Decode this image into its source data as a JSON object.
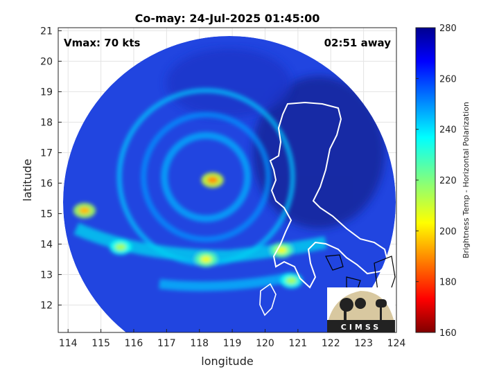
{
  "chart_data": {
    "type": "heatmap",
    "title": "Co-may: 24-Jul-2025 01:45:00",
    "xlabel": "longitude",
    "ylabel": "latitude",
    "xlim": [
      113.7,
      124.0
    ],
    "ylim": [
      11.1,
      21.1
    ],
    "xticks": [
      114,
      115,
      116,
      117,
      118,
      119,
      120,
      121,
      122,
      123,
      124
    ],
    "yticks": [
      12,
      13,
      14,
      15,
      16,
      17,
      18,
      19,
      20,
      21
    ],
    "grid": true,
    "annotations": {
      "vmax": "Vmax: 70 kts",
      "time_away": "02:51 away"
    },
    "storm_center": {
      "lon": 118.2,
      "lat": 16.2
    },
    "features": [
      {
        "lon": 118.4,
        "lat": 16.1,
        "value": 190
      },
      {
        "lon": 114.5,
        "lat": 15.1,
        "value": 195
      },
      {
        "lon": 118.2,
        "lat": 13.5,
        "value": 205
      },
      {
        "lon": 120.5,
        "lat": 13.8,
        "value": 205
      },
      {
        "lon": 120.8,
        "lat": 12.8,
        "value": 215
      },
      {
        "lon": 115.6,
        "lat": 13.9,
        "value": 215
      }
    ],
    "colorbar": {
      "label": "Brightness Temp - Horizontal Polarization",
      "min": 160,
      "max": 280,
      "ticks": [
        160,
        180,
        200,
        220,
        240,
        260,
        280
      ],
      "colormap": "jet"
    },
    "logo_text": "CIMSS"
  },
  "colors": {
    "background_cold": "#1f3fd8",
    "land_outline": "#ffffff",
    "coast_outline": "#000000"
  }
}
